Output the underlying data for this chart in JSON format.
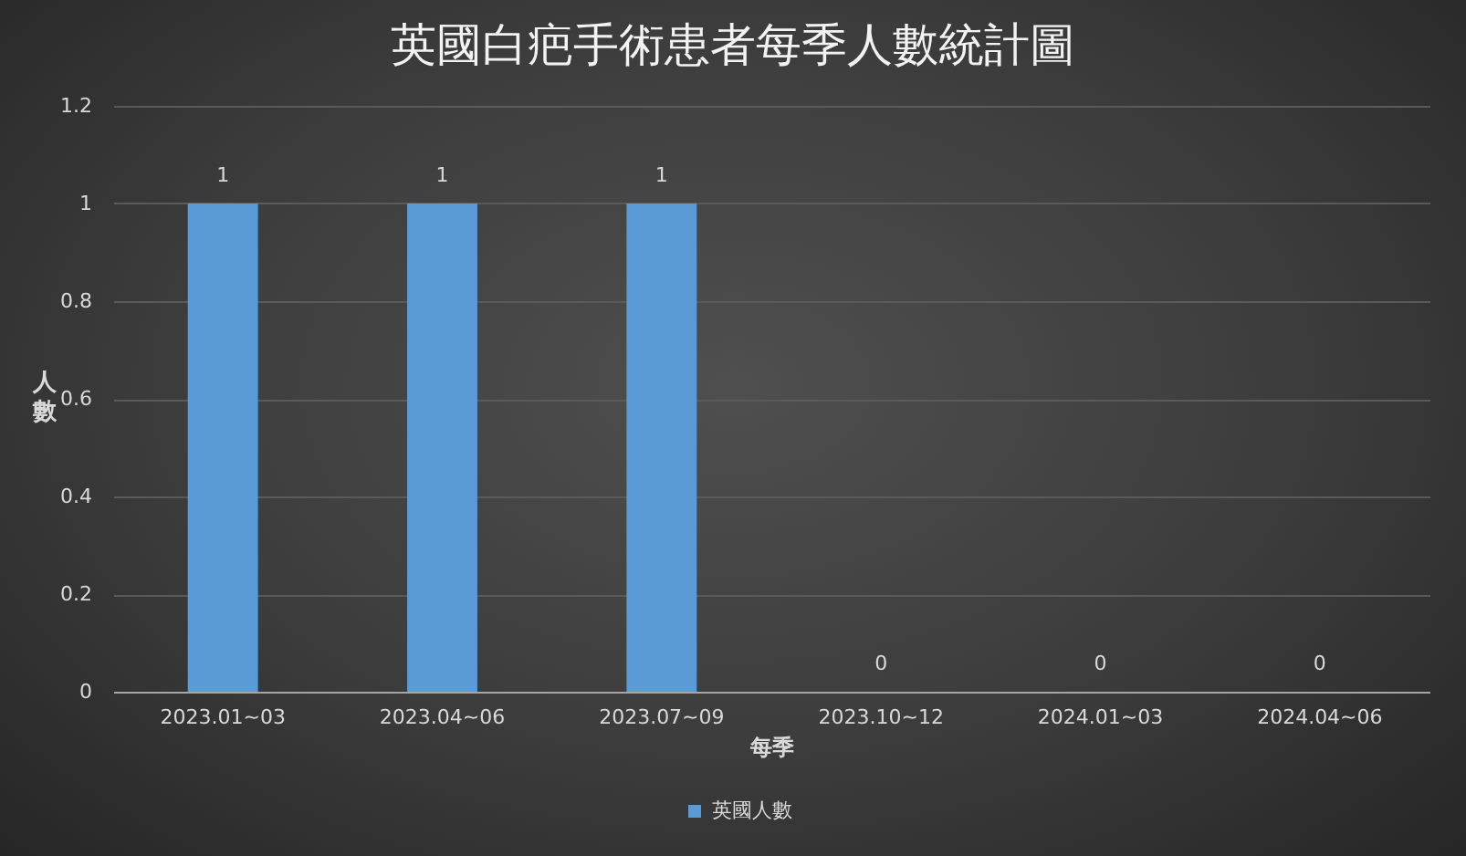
{
  "chart_data": {
    "type": "bar",
    "title": "英國白疤手術患者每季人數統計圖",
    "xlabel": "每季",
    "ylabel": "人數",
    "categories": [
      "2023.01~03",
      "2023.04~06",
      "2023.07~09",
      "2023.10~12",
      "2024.01~03",
      "2024.04~06"
    ],
    "series": [
      {
        "name": "英國人數",
        "color": "#5b9bd5",
        "values": [
          1,
          1,
          1,
          0,
          0,
          0
        ]
      }
    ],
    "ylim": [
      0,
      1.2
    ],
    "yticks": [
      0,
      0.2,
      0.4,
      0.6,
      0.8,
      1,
      1.2
    ],
    "grid": "y",
    "legend": "bottom",
    "data_labels": true
  }
}
